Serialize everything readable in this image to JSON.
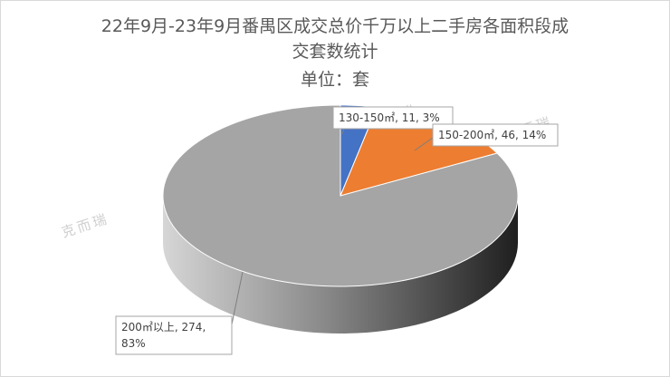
{
  "title_lines": [
    "22年9月-23年9月番禺区成交总价千万以上二手房各面积段成",
    "交套数统计",
    "单位：套"
  ],
  "watermark": "克而瑞",
  "chart_data": {
    "type": "pie",
    "title": "22年9月-23年9月番禺区成交总价千万以上二手房各面积段成交套数统计 单位：套",
    "categories": [
      "130-150㎡",
      "150-200㎡",
      "200㎡以上"
    ],
    "values": [
      11,
      46,
      274
    ],
    "percents": [
      "3%",
      "14%",
      "83%"
    ],
    "colors": [
      "#4472c4",
      "#ed7d31",
      "#a5a5a5"
    ],
    "data_labels": [
      "130-150㎡, 11, 3%",
      "150-200㎡, 46, 14%",
      "200㎡以上, 274,"
    ],
    "data_label_extra": "83%",
    "style": "3d-pie",
    "legend": "none"
  }
}
